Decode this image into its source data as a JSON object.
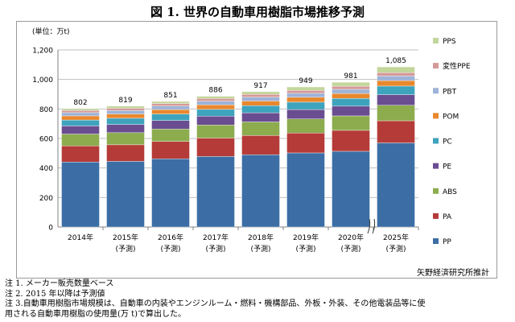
{
  "title": "図 1.  世界の自動車用樹脂市場推移予測",
  "source": "矢野経済研究所推計",
  "notes": [
    "注 1. メーカー販売数量ベース",
    "注 2. 2015 年以降は予測値",
    "注  3.自動車用樹脂市場規模は、自動車の内装やエンジンルーム・燃料・機構部品、外板・外装、その他電装品等に使",
    "用される自動車用樹脂の使用量(万 t)で算出した。"
  ],
  "chart_data": {
    "type": "bar",
    "stacked": true,
    "unit_label": "(単位：万t)",
    "categories": [
      [
        "2014年"
      ],
      [
        "2015年",
        "(予測)"
      ],
      [
        "2016年",
        "(予測)"
      ],
      [
        "2017年",
        "(予測)"
      ],
      [
        "2018年",
        "(予測)"
      ],
      [
        "2019年",
        "(予測)"
      ],
      [
        "2020年",
        "(予測)"
      ],
      [
        "2025年",
        "(予測)"
      ]
    ],
    "totals": [
      "802",
      "819",
      "851",
      "886",
      "917",
      "949",
      "981",
      "1,085"
    ],
    "ylim": [
      0,
      1200
    ],
    "yticks": [
      0,
      200,
      400,
      600,
      800,
      1000,
      1200
    ],
    "ytick_labels": [
      "0",
      "200",
      "400",
      "600",
      "800",
      "1,000",
      "1,200"
    ],
    "axis_break": "between 2020 and 2025",
    "legend_position": "right",
    "series": [
      {
        "name": "PP",
        "color": "#3c6ea5",
        "values": [
          440,
          445,
          462,
          478,
          490,
          502,
          513,
          570
        ]
      },
      {
        "name": "PA",
        "color": "#b53b38",
        "values": [
          110,
          112,
          118,
          125,
          130,
          135,
          142,
          150
        ]
      },
      {
        "name": "ABS",
        "color": "#8cac4e",
        "values": [
          80,
          82,
          84,
          88,
          92,
          95,
          98,
          105
        ]
      },
      {
        "name": "PE",
        "color": "#6a4d91",
        "values": [
          55,
          56,
          58,
          60,
          62,
          64,
          66,
          72
        ]
      },
      {
        "name": "PC",
        "color": "#3ea3bd",
        "values": [
          40,
          42,
          44,
          46,
          48,
          50,
          52,
          58
        ]
      },
      {
        "name": "POM",
        "color": "#e8882e",
        "values": [
          28,
          29,
          30,
          31,
          32,
          33,
          34,
          37
        ]
      },
      {
        "name": "PBT",
        "color": "#9db3d8",
        "values": [
          22,
          23,
          24,
          25,
          26,
          27,
          28,
          31
        ]
      },
      {
        "name": "変性PPE",
        "color": "#d59a98",
        "values": [
          15,
          16,
          17,
          18,
          19,
          20,
          21,
          23
        ]
      },
      {
        "name": "PPS",
        "color": "#c3d69b",
        "values": [
          12,
          14,
          14,
          15,
          18,
          23,
          27,
          39
        ]
      }
    ]
  }
}
